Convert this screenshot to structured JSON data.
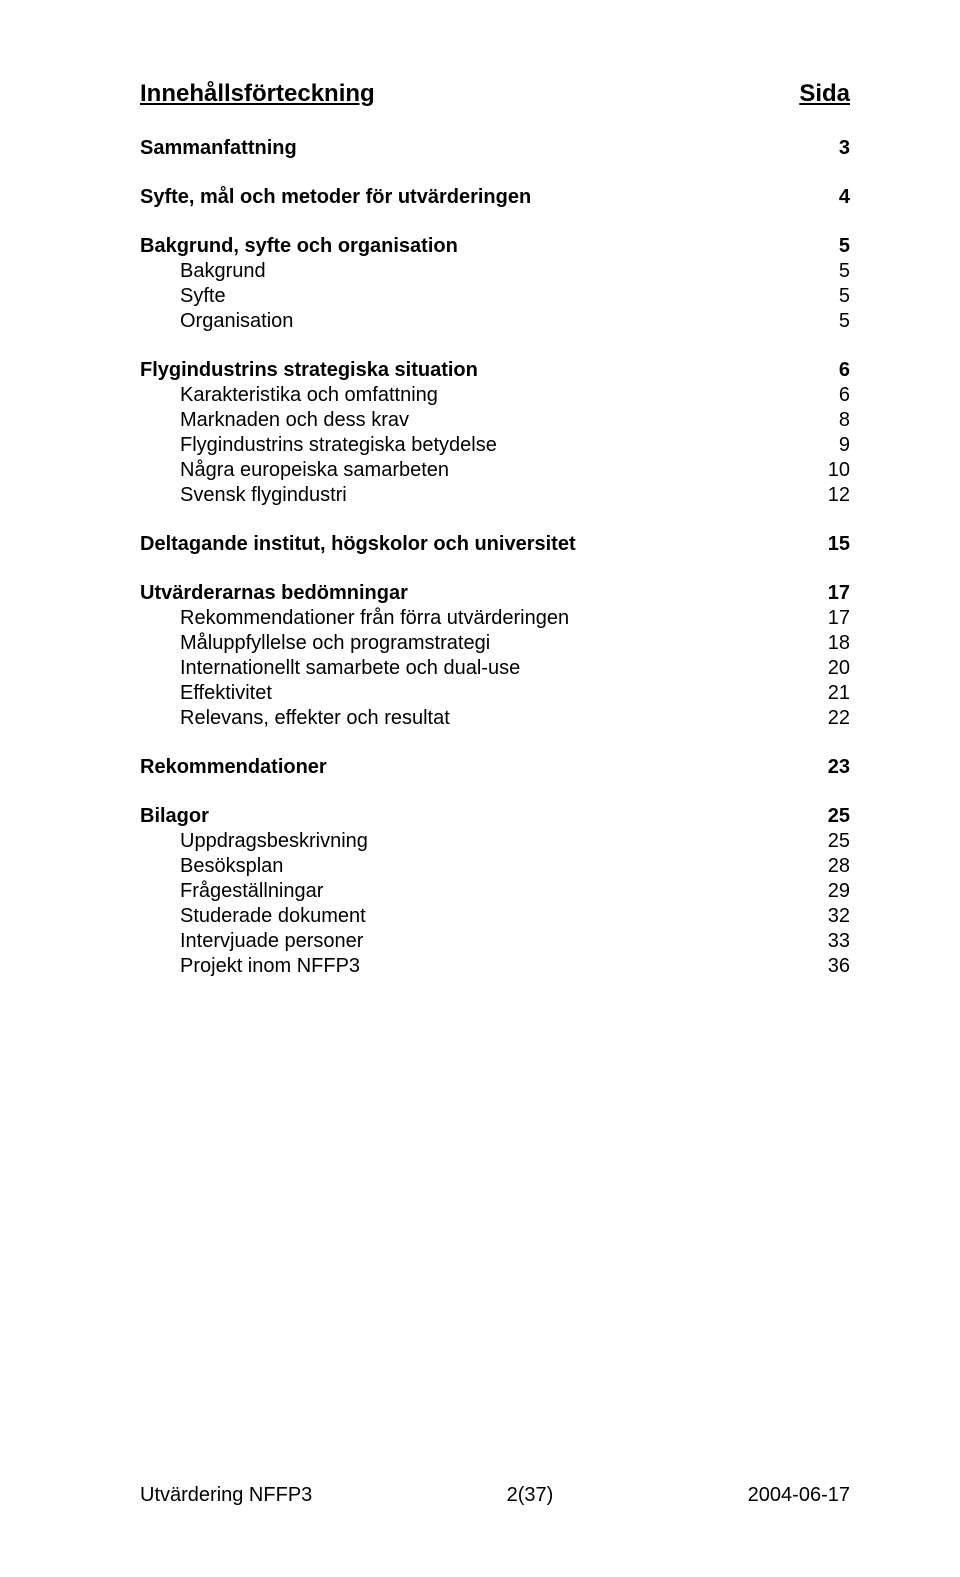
{
  "header": {
    "title_left": "Innehållsförteckning",
    "title_right": "Sida"
  },
  "toc": [
    {
      "rows": [
        {
          "label": "Sammanfattning",
          "page": "3",
          "bold": true,
          "indent": false
        }
      ]
    },
    {
      "rows": [
        {
          "label": "Syfte, mål och metoder för utvärderingen",
          "page": "4",
          "bold": true,
          "indent": false
        }
      ]
    },
    {
      "rows": [
        {
          "label": "Bakgrund, syfte och organisation",
          "page": "5",
          "bold": true,
          "indent": false
        },
        {
          "label": "Bakgrund",
          "page": "5",
          "bold": false,
          "indent": true
        },
        {
          "label": "Syfte",
          "page": "5",
          "bold": false,
          "indent": true
        },
        {
          "label": "Organisation",
          "page": "5",
          "bold": false,
          "indent": true
        }
      ]
    },
    {
      "rows": [
        {
          "label": "Flygindustrins strategiska situation",
          "page": "6",
          "bold": true,
          "indent": false
        },
        {
          "label": "Karakteristika och omfattning",
          "page": "6",
          "bold": false,
          "indent": true
        },
        {
          "label": "Marknaden och dess krav",
          "page": "8",
          "bold": false,
          "indent": true
        },
        {
          "label": "Flygindustrins strategiska betydelse",
          "page": "9",
          "bold": false,
          "indent": true
        },
        {
          "label": "Några europeiska samarbeten",
          "page": "10",
          "bold": false,
          "indent": true
        },
        {
          "label": "Svensk flygindustri",
          "page": "12",
          "bold": false,
          "indent": true
        }
      ]
    },
    {
      "rows": [
        {
          "label": "Deltagande institut, högskolor och universitet",
          "page": "15",
          "bold": true,
          "indent": false
        }
      ]
    },
    {
      "rows": [
        {
          "label": "Utvärderarnas bedömningar",
          "page": "17",
          "bold": true,
          "indent": false
        },
        {
          "label": "Rekommendationer från förra utvärderingen",
          "page": "17",
          "bold": false,
          "indent": true
        },
        {
          "label": "Måluppfyllelse och programstrategi",
          "page": "18",
          "bold": false,
          "indent": true
        },
        {
          "label": "Internationellt samarbete och dual-use",
          "page": "20",
          "bold": false,
          "indent": true
        },
        {
          "label": "Effektivitet",
          "page": "21",
          "bold": false,
          "indent": true
        },
        {
          "label": "Relevans, effekter och resultat",
          "page": "22",
          "bold": false,
          "indent": true
        }
      ]
    },
    {
      "rows": [
        {
          "label": "Rekommendationer",
          "page": "23",
          "bold": true,
          "indent": false
        }
      ]
    },
    {
      "rows": [
        {
          "label": "Bilagor",
          "page": "25",
          "bold": true,
          "indent": false
        },
        {
          "label": "Uppdragsbeskrivning",
          "page": "25",
          "bold": false,
          "indent": true
        },
        {
          "label": "Besöksplan",
          "page": "28",
          "bold": false,
          "indent": true
        },
        {
          "label": "Frågeställningar",
          "page": "29",
          "bold": false,
          "indent": true
        },
        {
          "label": "Studerade dokument",
          "page": "32",
          "bold": false,
          "indent": true
        },
        {
          "label": "Intervjuade personer",
          "page": "33",
          "bold": false,
          "indent": true
        },
        {
          "label": "Projekt inom NFFP3",
          "page": "36",
          "bold": false,
          "indent": true
        }
      ]
    }
  ],
  "footer": {
    "left": "Utvärdering NFFP3",
    "center": "2(37)",
    "right": "2004-06-17"
  },
  "colors": {
    "text": "#000000",
    "background": "#ffffff"
  },
  "typography": {
    "body_fontsize_pt": 15,
    "header_fontsize_pt": 18,
    "font_family": "Arial"
  }
}
